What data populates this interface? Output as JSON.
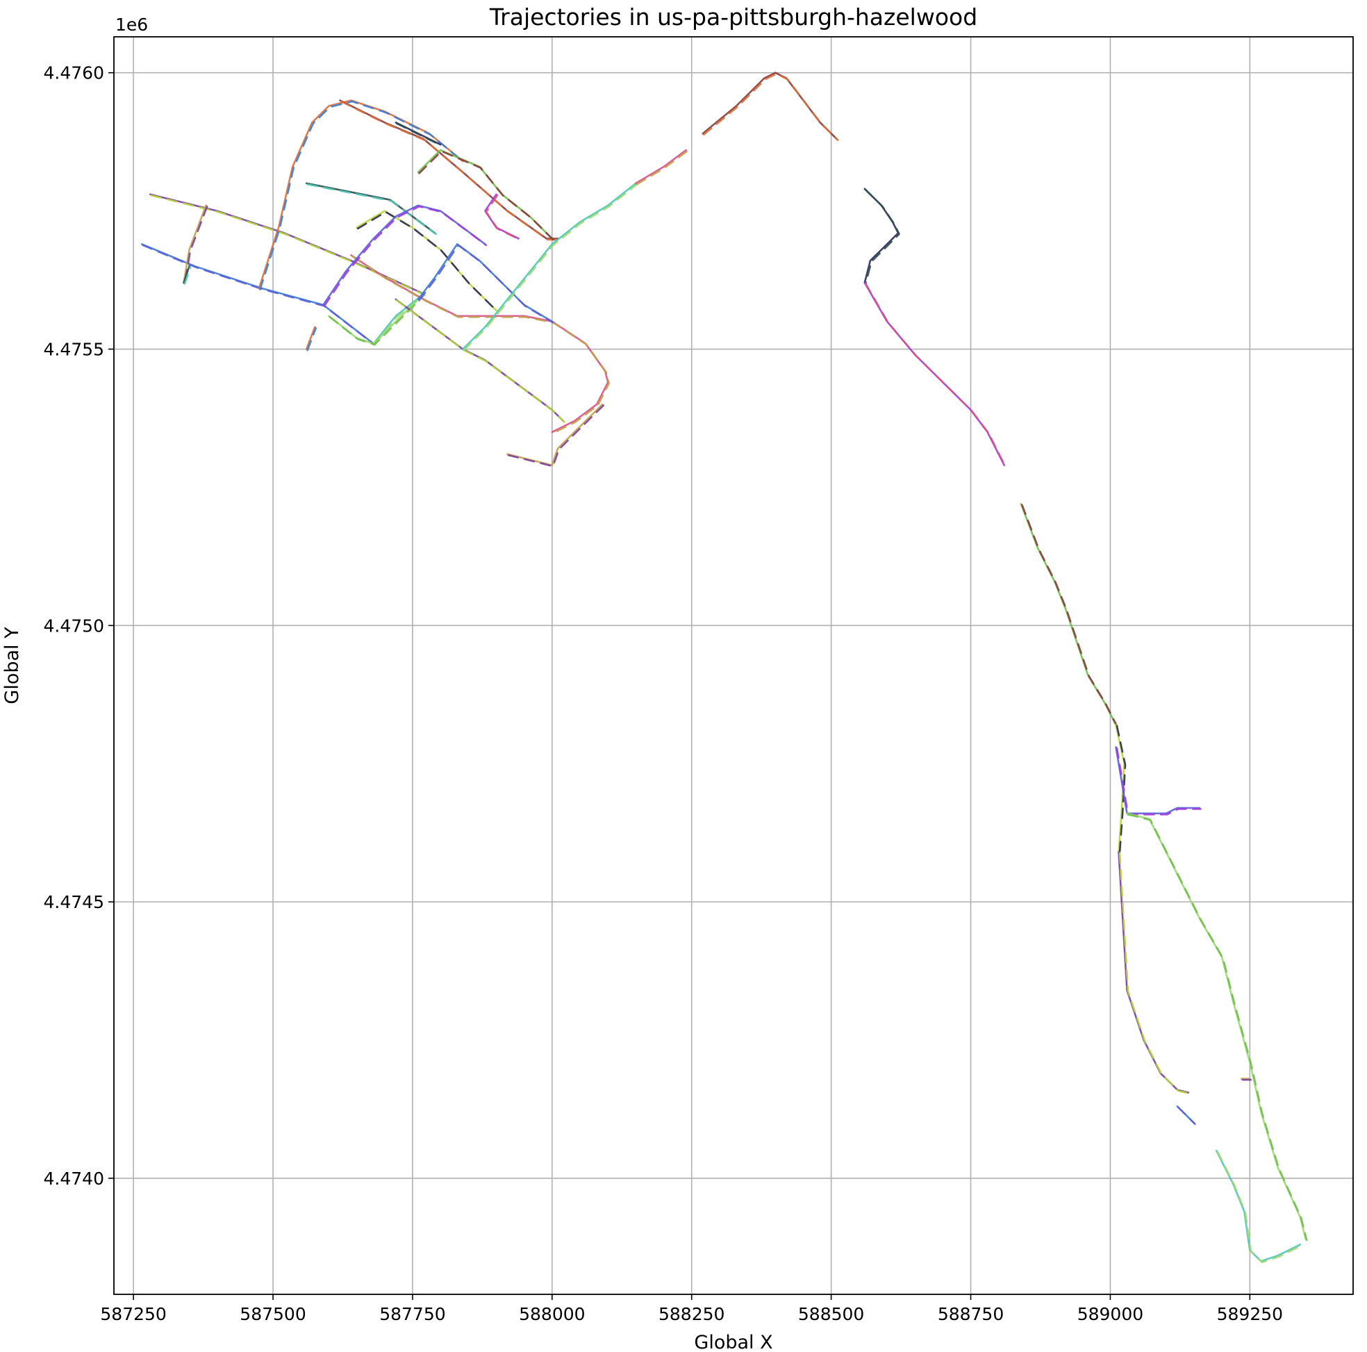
{
  "chart_data": {
    "type": "line",
    "title": "Trajectories in us-pa-pittsburgh-hazelwood",
    "xlabel": "Global X",
    "ylabel": "Global Y",
    "y_offset_label": "1e6",
    "xlim": [
      587215,
      589435
    ],
    "ylim": [
      4473790,
      4476065
    ],
    "x_ticks": [
      {
        "value": 587250,
        "label": "587250"
      },
      {
        "value": 587500,
        "label": "587500"
      },
      {
        "value": 587750,
        "label": "587750"
      },
      {
        "value": 588000,
        "label": "588000"
      },
      {
        "value": 588250,
        "label": "588250"
      },
      {
        "value": 588500,
        "label": "588500"
      },
      {
        "value": 588750,
        "label": "588750"
      },
      {
        "value": 589000,
        "label": "589000"
      },
      {
        "value": 589250,
        "label": "589250"
      }
    ],
    "y_ticks": [
      {
        "value": 4474000,
        "label": "4.4740"
      },
      {
        "value": 4474500,
        "label": "4.4745"
      },
      {
        "value": 4475000,
        "label": "4.4750"
      },
      {
        "value": 4475500,
        "label": "4.4755"
      },
      {
        "value": 4476000,
        "label": "4.4760"
      }
    ],
    "grid": true,
    "legend": "none",
    "colors": [
      "#7b3f9e",
      "#2f4f4f",
      "#6fbf4a",
      "#3a7bd5",
      "#d94f8a",
      "#b5d63a",
      "#4ac7b5",
      "#8b3a3a",
      "#5b5fd9",
      "#c2a04a",
      "#2a2a5a",
      "#9ad96f",
      "#d96f3a",
      "#a03ad9"
    ],
    "series": [
      {
        "x": [
          587280,
          587400,
          587520,
          587640,
          587770
        ],
        "y": [
          4475780,
          4475750,
          4475710,
          4475660,
          4475600
        ]
      },
      {
        "x": [
          587265,
          587360,
          587480,
          587590,
          587680
        ],
        "y": [
          4475690,
          4475650,
          4475610,
          4475580,
          4475510
        ]
      },
      {
        "x": [
          587680,
          587720,
          587770
        ],
        "y": [
          4475510,
          4475560,
          4475600
        ]
      },
      {
        "x": [
          587380,
          587350,
          587340
        ],
        "y": [
          4475760,
          4475680,
          4475620
        ]
      },
      {
        "x": [
          587475,
          587510,
          587535,
          587570,
          587600,
          587640,
          587700,
          587780,
          587840
        ],
        "y": [
          4475610,
          4475720,
          4475830,
          4475910,
          4475940,
          4475950,
          4475930,
          4475890,
          4475840
        ]
      },
      {
        "x": [
          587560,
          587610,
          587660,
          587710,
          587750,
          587790
        ],
        "y": [
          4475800,
          4475790,
          4475780,
          4475770,
          4475740,
          4475710
        ]
      },
      {
        "x": [
          587640,
          587700,
          587770,
          587830,
          587890,
          587950,
          588000,
          588060,
          588095,
          588100,
          588080,
          588040,
          588000
        ],
        "y": [
          4475670,
          4475630,
          4475590,
          4475560,
          4475560,
          4475560,
          4475550,
          4475510,
          4475460,
          4475440,
          4475400,
          4475370,
          4475350
        ]
      },
      {
        "x": [
          587620,
          587700,
          587770,
          587840,
          587920,
          587990,
          588010
        ],
        "y": [
          4475950,
          4475910,
          4475880,
          4475820,
          4475750,
          4475700,
          4475700
        ]
      },
      {
        "x": [
          587720,
          587760,
          587800
        ],
        "y": [
          4475910,
          4475890,
          4475870
        ]
      },
      {
        "x": [
          587900,
          587880,
          587900,
          587940
        ],
        "y": [
          4475780,
          4475750,
          4475720,
          4475700
        ]
      },
      {
        "x": [
          587760,
          587800,
          587870,
          587910,
          587960,
          588000
        ],
        "y": [
          4475820,
          4475860,
          4475830,
          4475780,
          4475740,
          4475700
        ]
      },
      {
        "x": [
          587650,
          587700,
          587750,
          587800,
          587850,
          587900
        ],
        "y": [
          4475720,
          4475750,
          4475720,
          4475680,
          4475620,
          4475570
        ]
      },
      {
        "x": [
          587590,
          587630,
          587680,
          587720,
          587760,
          587800,
          587840,
          587880
        ],
        "y": [
          4475580,
          4475640,
          4475700,
          4475740,
          4475760,
          4475750,
          4475720,
          4475690
        ]
      },
      {
        "x": [
          587600,
          587650,
          587680,
          587720,
          587760
        ],
        "y": [
          4475560,
          4475520,
          4475510,
          4475550,
          4475590
        ]
      },
      {
        "x": [
          587720,
          587760,
          587800,
          587840,
          587880,
          587920,
          587960,
          588000,
          588020
        ],
        "y": [
          4475590,
          4475560,
          4475530,
          4475500,
          4475480,
          4475450,
          4475420,
          4475390,
          4475370
        ]
      },
      {
        "x": [
          587760,
          587790,
          587830,
          587870,
          587910,
          587950,
          588000
        ],
        "y": [
          4475590,
          4475630,
          4475690,
          4475660,
          4475620,
          4475580,
          4475550
        ]
      },
      {
        "x": [
          587840,
          587880,
          587920,
          587960,
          588000,
          588050,
          588100,
          588150
        ],
        "y": [
          4475500,
          4475540,
          4475590,
          4475640,
          4475690,
          4475730,
          4475760,
          4475800
        ]
      },
      {
        "x": [
          587920,
          587960,
          588000,
          588010,
          588030,
          588060,
          588090
        ],
        "y": [
          4475310,
          4475300,
          4475290,
          4475320,
          4475340,
          4475370,
          4475400
        ]
      },
      {
        "x": [
          587560,
          587575
        ],
        "y": [
          4475500,
          4475540
        ]
      },
      {
        "x": [
          587340,
          587350
        ],
        "y": [
          4475620,
          4475650
        ]
      },
      {
        "x": [
          588150,
          588200,
          588240
        ],
        "y": [
          4475800,
          4475830,
          4475860
        ]
      },
      {
        "x": [
          588270,
          588330,
          588380,
          588400,
          588420,
          588450,
          588480,
          588510
        ],
        "y": [
          4475890,
          4475940,
          4475990,
          4476000,
          4475990,
          4475950,
          4475910,
          4475880
        ]
      },
      {
        "x": [
          588560,
          588590,
          588610,
          588620,
          588600,
          588570,
          588560
        ],
        "y": [
          4475790,
          4475760,
          4475730,
          4475710,
          4475690,
          4475660,
          4475620
        ]
      },
      {
        "x": [
          588560,
          588600,
          588650,
          588700,
          588750,
          588780,
          588810
        ],
        "y": [
          4475620,
          4475550,
          4475490,
          4475440,
          4475390,
          4475350,
          4475290
        ]
      },
      {
        "x": [
          588840,
          588870,
          588900,
          588920,
          588940,
          588960,
          588990,
          589010
        ],
        "y": [
          4475220,
          4475140,
          4475080,
          4475030,
          4474970,
          4474910,
          4474860,
          4474820
        ]
      },
      {
        "x": [
          589010,
          589025,
          589020,
          589015
        ],
        "y": [
          4474820,
          4474750,
          4474660,
          4474590
        ]
      },
      {
        "x": [
          589010,
          589030,
          589100,
          589120,
          589160
        ],
        "y": [
          4474780,
          4474660,
          4474660,
          4474670,
          4474670
        ]
      },
      {
        "x": [
          589030,
          589070,
          589100,
          589130,
          589160,
          589200,
          589220,
          589250,
          589270,
          589300,
          589340,
          589350
        ],
        "y": [
          4474660,
          4474650,
          4474590,
          4474530,
          4474470,
          4474400,
          4474320,
          4474210,
          4474120,
          4474020,
          4473930,
          4473890
        ]
      },
      {
        "x": [
          589015,
          589030,
          589060,
          589090,
          589120,
          589140
        ],
        "y": [
          4474590,
          4474340,
          4474250,
          4474190,
          4474160,
          4474155
        ]
      },
      {
        "x": [
          589120,
          589150
        ],
        "y": [
          4474130,
          4474100
        ]
      },
      {
        "x": [
          589190,
          589220,
          589240,
          589250,
          589270,
          589300,
          589340
        ],
        "y": [
          4474050,
          4473990,
          4473940,
          4473870,
          4473850,
          4473860,
          4473880
        ]
      },
      {
        "x": [
          589235,
          589250
        ],
        "y": [
          4474180,
          4474180
        ]
      }
    ]
  }
}
